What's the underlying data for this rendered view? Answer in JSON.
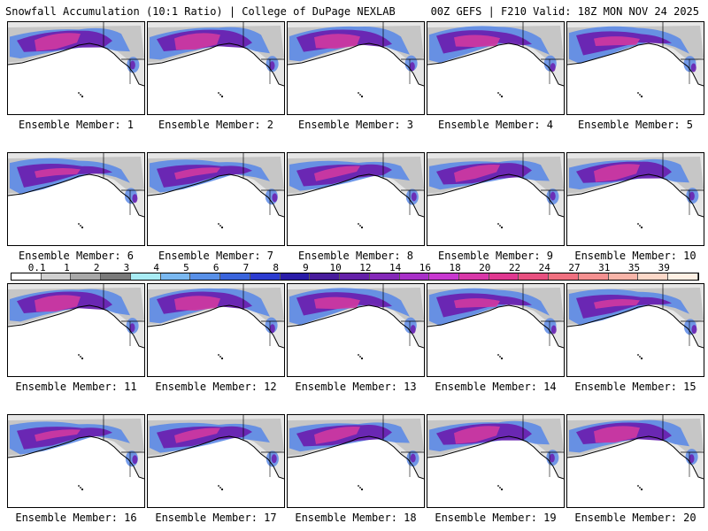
{
  "header": {
    "title_left": "Snowfall Accumulation (10:1 Ratio) | College of DuPage NEXLAB",
    "title_right": "00Z GEFS | F210 Valid: 18Z MON NOV 24 2025"
  },
  "panel_label_prefix": "Ensemble Member: ",
  "members": [
    1,
    2,
    3,
    4,
    5,
    6,
    7,
    8,
    9,
    10,
    11,
    12,
    13,
    14,
    15,
    16,
    17,
    18,
    19,
    20
  ],
  "legend": {
    "values": [
      "0.1",
      "1",
      "2",
      "3",
      "4",
      "5",
      "6",
      "7",
      "8",
      "9",
      "10",
      "12",
      "14",
      "16",
      "18",
      "20",
      "22",
      "24",
      "27",
      "31",
      "35",
      "39"
    ],
    "colors": [
      "#ffffff",
      "#d0d0d0",
      "#a8a8a8",
      "#7a7a7a",
      "#a8ecf4",
      "#7ab8f0",
      "#5890e8",
      "#3a64dc",
      "#2c3cd0",
      "#2a1ca8",
      "#481c9c",
      "#6420a8",
      "#8428b8",
      "#a830c8",
      "#c838d0",
      "#d838a8",
      "#e03890",
      "#e85080",
      "#f07080",
      "#f49090",
      "#f8b4a8",
      "#fcd8c8",
      "#fff0e4"
    ]
  },
  "colors": {
    "background": "#ffffff",
    "land": "#e6e6e6",
    "snow_light": "#b8b8b8",
    "snow_blue": "#5c8ae6",
    "snow_purple": "#6a22b0",
    "snow_magenta": "#d03aa0",
    "coast": "#000000"
  }
}
